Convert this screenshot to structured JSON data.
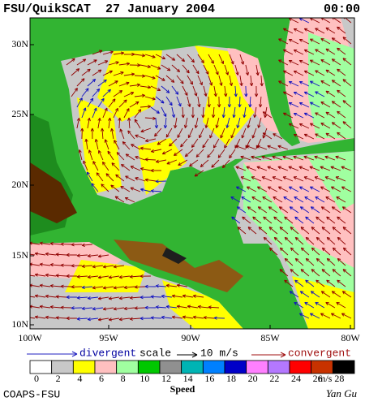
{
  "header": {
    "title": "FSU/QuikSCAT  27 January 2004",
    "time": "00:00"
  },
  "map": {
    "lon_labels": [
      "100W",
      "95W",
      "90W",
      "85W",
      "80W"
    ],
    "lat_labels": [
      "30N",
      "25N",
      "20N",
      "15N",
      "10N"
    ]
  },
  "legend": {
    "divergent": "divergent",
    "scale": "scale",
    "scale_value": "10 m/s",
    "convergent": "convergent"
  },
  "speed_scale": {
    "title": "Speed",
    "unit": "m/s",
    "labels": [
      "0",
      "2",
      "4",
      "6",
      "8",
      "10",
      "12",
      "14",
      "16",
      "18",
      "20",
      "22",
      "24",
      "26",
      "28"
    ],
    "colors": [
      "#ffffff",
      "#c8c8c8",
      "#ffff00",
      "#ffc0c0",
      "#a0ffa0",
      "#00c800",
      "#909090",
      "#00b4b4",
      "#0080ff",
      "#0000c8",
      "#ff80ff",
      "#b478ff",
      "#ff0000",
      "#c83200",
      "#000000"
    ]
  },
  "footer": {
    "credit": "COAPS-FSU",
    "author": "Yan Gu"
  }
}
